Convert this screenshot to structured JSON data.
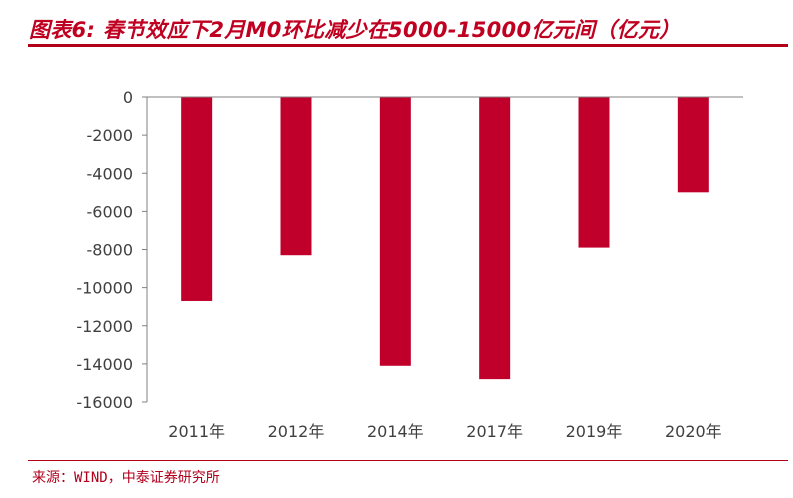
{
  "title": "图表6: 春节效应下2月M0环比减少在5000-15000亿元间（亿元）",
  "source": "来源：WIND，中泰证券研究所",
  "colors": {
    "bar": "#C0002A",
    "accent": "#B0001C",
    "axis": "#808080",
    "text": "#404040"
  },
  "chart_data": {
    "type": "bar",
    "title": "图表6: 春节效应下2月M0环比减少在5000-15000亿元间（亿元）",
    "xlabel": "",
    "ylabel": "",
    "categories": [
      "2011年",
      "2012年",
      "2014年",
      "2017年",
      "2019年",
      "2020年"
    ],
    "series": [
      {
        "values": [
          -10700,
          -8300,
          -14100,
          -14800,
          -7900,
          -5000
        ]
      }
    ],
    "ylim": [
      -16000,
      0
    ],
    "yticks": [
      0,
      -2000,
      -4000,
      -6000,
      -8000,
      -10000,
      -12000,
      -14000,
      -16000
    ],
    "grid": false,
    "legend": "none"
  }
}
